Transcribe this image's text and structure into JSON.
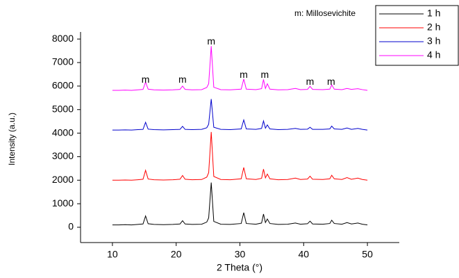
{
  "chart_data": {
    "type": "line",
    "x_label": "2 Theta (°)",
    "y_label": "Intensity (a.u.)",
    "xlim": [
      5,
      55
    ],
    "ylim": [
      -650,
      8300
    ],
    "xticks": [
      10,
      20,
      30,
      40,
      50
    ],
    "yticks": [
      0,
      1000,
      2000,
      3000,
      4000,
      5000,
      6000,
      7000,
      8000
    ],
    "legend": "upper right",
    "annotations": [
      {
        "text": "m: Millosevichite"
      },
      {
        "text": "m",
        "x": 15.2,
        "y": 6250
      },
      {
        "text": "m",
        "x": 21,
        "y": 6250
      },
      {
        "text": "m",
        "x": 25.5,
        "y": 7880
      },
      {
        "text": "m",
        "x": 30.6,
        "y": 6460
      },
      {
        "text": "m",
        "x": 33.9,
        "y": 6460
      },
      {
        "text": "m",
        "x": 41,
        "y": 6170
      },
      {
        "text": "m",
        "x": 44.3,
        "y": 6170
      }
    ],
    "x": [
      10,
      11,
      12,
      13,
      14,
      14.8,
      15.2,
      15.6,
      16.5,
      18,
      19.5,
      20.6,
      21,
      21.4,
      22.5,
      24,
      24.8,
      25.1,
      25.5,
      25.9,
      27,
      28.5,
      30.2,
      30.6,
      31,
      32.5,
      33.4,
      33.7,
      34,
      34.3,
      34.7,
      36,
      37.5,
      38.7,
      39.5,
      40.6,
      41,
      41.4,
      43,
      44.1,
      44.4,
      44.8,
      46,
      46.8,
      47.5,
      48.5,
      49.2,
      50
    ],
    "series": [
      {
        "name": "1 h",
        "color": "#000000",
        "values": [
          100,
          100,
          110,
          100,
          120,
          140,
          480,
          150,
          120,
          110,
          120,
          140,
          280,
          140,
          120,
          130,
          220,
          400,
          1900,
          250,
          130,
          120,
          160,
          620,
          160,
          130,
          180,
          560,
          200,
          350,
          160,
          120,
          130,
          180,
          130,
          150,
          260,
          140,
          130,
          160,
          300,
          160,
          130,
          200,
          140,
          180,
          130,
          100
        ]
      },
      {
        "name": "2 h",
        "color": "#ff0000",
        "values": [
          2000,
          2000,
          2010,
          2000,
          2020,
          2040,
          2420,
          2050,
          2020,
          2010,
          2020,
          2040,
          2200,
          2040,
          2020,
          2030,
          2130,
          2320,
          4050,
          2160,
          2030,
          2020,
          2060,
          2540,
          2060,
          2030,
          2080,
          2470,
          2100,
          2260,
          2060,
          2020,
          2030,
          2090,
          2030,
          2050,
          2170,
          2040,
          2030,
          2060,
          2210,
          2060,
          2030,
          2110,
          2040,
          2090,
          2030,
          2000
        ]
      },
      {
        "name": "3 h",
        "color": "#0000cc",
        "values": [
          4130,
          4130,
          4140,
          4130,
          4150,
          4160,
          4460,
          4170,
          4150,
          4140,
          4150,
          4160,
          4290,
          4160,
          4150,
          4160,
          4230,
          4380,
          5450,
          4250,
          4160,
          4150,
          4180,
          4560,
          4180,
          4160,
          4200,
          4520,
          4210,
          4350,
          4180,
          4150,
          4160,
          4200,
          4160,
          4170,
          4250,
          4160,
          4160,
          4180,
          4300,
          4180,
          4160,
          4220,
          4160,
          4200,
          4160,
          4130
        ]
      },
      {
        "name": "4 h",
        "color": "#ff00ff",
        "values": [
          5820,
          5820,
          5830,
          5820,
          5840,
          5860,
          6170,
          5870,
          5840,
          5830,
          5840,
          5860,
          6000,
          5860,
          5840,
          5850,
          5940,
          6100,
          7700,
          5950,
          5850,
          5840,
          5870,
          6300,
          5870,
          5850,
          5890,
          6280,
          5900,
          6100,
          5870,
          5840,
          5850,
          5900,
          5850,
          5860,
          5990,
          5860,
          5850,
          5870,
          6050,
          5870,
          5850,
          5900,
          5860,
          5890,
          5850,
          5820
        ]
      }
    ]
  }
}
